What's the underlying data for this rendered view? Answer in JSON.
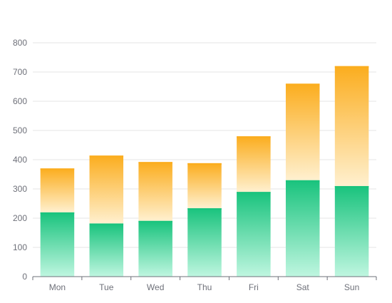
{
  "chart_data": {
    "type": "bar",
    "stacked": true,
    "categories": [
      "Mon",
      "Tue",
      "Wed",
      "Thu",
      "Fri",
      "Sat",
      "Sun"
    ],
    "series": [
      {
        "values": [
          220,
          182,
          191,
          234,
          290,
          330,
          310
        ],
        "color_top": "#19c37d",
        "color_bottom": "#bff6e0"
      },
      {
        "values": [
          150,
          232,
          201,
          154,
          190,
          330,
          410
        ],
        "color_top": "#fbad1e",
        "color_bottom": "#fff0cf"
      }
    ],
    "ylim": [
      0,
      800
    ],
    "yticks": [
      0,
      100,
      200,
      300,
      400,
      500,
      600,
      700,
      800
    ],
    "grid": true,
    "legend": "none",
    "title": "",
    "xlabel": "",
    "ylabel": ""
  }
}
